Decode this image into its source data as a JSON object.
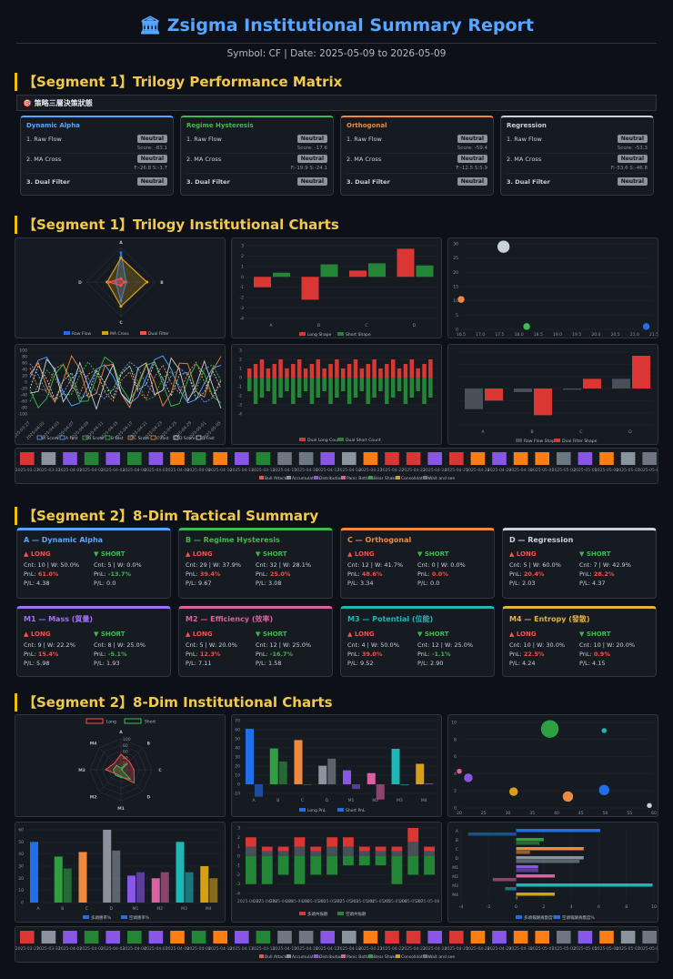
{
  "header": {
    "title": "🏛 Zsigma Institutional Summary Report",
    "subtitle": "Symbol: CF | Date: 2025-05-09 to 2026-05-09"
  },
  "segments": {
    "s1_matrix": "【Segment 1】Trilogy Performance Matrix",
    "s1_charts": "【Segment 1】Trilogy Institutional Charts",
    "s2_summary": "【Segment 2】8-Dim Tactical Summary",
    "s2_charts": "【Segment 2】8-Dim Institutional Charts"
  },
  "matrix_strip_title": "🎯 策略三層決策狀態",
  "matrix": [
    {
      "name": "Dynamic Alpha",
      "color": "#58a6ff",
      "r1": "1. Raw Flow",
      "b1": "Neutral",
      "s1": "",
      "r2": "2. MA Cross",
      "b2": "Neutral",
      "s2": "F:-26.8 S:-3.7",
      "r3": "3. Dual Filter",
      "b3": "Neutral"
    },
    {
      "name": "Regime Hysteresis",
      "color": "#3fb950",
      "r1": "1. Raw Flow",
      "b1": "Neutral",
      "s1": "Score: -17.6",
      "r2": "2. MA Cross",
      "b2": "Neutral",
      "s2": "F:-19.9 S:-24.1",
      "r3": "3. Dual Filter",
      "b3": "Neutral"
    },
    {
      "name": "Orthogonal",
      "color": "#f0883e",
      "r1": "1. Raw Flow",
      "b1": "Neutral",
      "s1": "Score: -59.4",
      "r2": "2. MA Cross",
      "b2": "Neutral",
      "s2": "F:-12.5 S:5.9",
      "r3": "3. Dual Filter",
      "b3": "Neutral"
    },
    {
      "name": "Regression",
      "color": "#c9d1d9",
      "r1": "1. Raw Flow",
      "b1": "Neutral",
      "s1": "Score: -53.3",
      "r2": "2. MA Cross",
      "b2": "Neutral",
      "s2": "F:-53.6 S:-46.8",
      "r3": "3. Dual Filter",
      "b3": "Neutral"
    }
  ],
  "matrix_score_a": "Score: -83.1",
  "s1_radar": {
    "axes": [
      "A",
      "B",
      "C",
      "D"
    ],
    "legend": [
      "Raw Flow",
      "MA Cross",
      "Dual Filter"
    ],
    "colors": [
      "#1f6feb",
      "#d4a017",
      "#f85149"
    ]
  },
  "s1_bar_shape": {
    "categories": [
      "A",
      "B",
      "C",
      "D"
    ],
    "yticks": [
      "3",
      "2",
      "1",
      "0",
      "-1",
      "-2",
      "-3",
      "-4"
    ],
    "long": [
      -1.0,
      -2.2,
      0.6,
      2.7
    ],
    "short": [
      0.4,
      1.2,
      1.3,
      1.1
    ],
    "legend": [
      "Long Shape",
      "Short Shape"
    ]
  },
  "s1_scatter": {
    "yticks": [
      "30",
      "25",
      "20",
      "15",
      "10",
      "5",
      "0"
    ],
    "xticks": [
      "16.5",
      "17.0",
      "17.5",
      "18.0",
      "18.5",
      "19.0",
      "19.5",
      "20.0",
      "20.5",
      "21.0",
      "21.5"
    ],
    "points": [
      {
        "x": 16.5,
        "y": 10.5,
        "r": 4,
        "color": "#f0883e"
      },
      {
        "x": 17.6,
        "y": 29,
        "r": 7,
        "color": "#c9d1d9"
      },
      {
        "x": 18.2,
        "y": 1,
        "r": 4,
        "color": "#3fb950"
      },
      {
        "x": 21.3,
        "y": 1,
        "r": 4,
        "color": "#1f6feb"
      }
    ]
  },
  "s1_lines": {
    "yticks": [
      "100",
      "80",
      "60",
      "40",
      "20",
      "0",
      "-20",
      "-40",
      "-60",
      "-80",
      "-100"
    ],
    "legend": [
      "A Score",
      "A Fast",
      "B Score",
      "B Fast",
      "C Score",
      "C Fast",
      "D Score",
      "D Fast"
    ]
  },
  "s1_counts": {
    "yticks": [
      "3",
      "2",
      "1",
      "0",
      "-1",
      "-2",
      "-3",
      "-4"
    ],
    "legend": [
      "Dual Long Count",
      "Dual Short Count"
    ]
  },
  "s1_shape2": {
    "categories": [
      "A",
      "B",
      "C",
      "D"
    ],
    "raw": [
      -1.7,
      -0.3,
      -0.1,
      0.8
    ],
    "dual": [
      -1.0,
      -2.2,
      0.8,
      2.7
    ],
    "legend": [
      "Raw Flow Shape",
      "Dual Filter Shape"
    ]
  },
  "regime_strip": {
    "dates": [
      "2025-03-27",
      "2025-03-31",
      "2025-04-01",
      "2025-04-02",
      "2025-04-03",
      "2025-04-04",
      "2025-04-07",
      "2025-04-08",
      "2025-04-09",
      "2025-04-10",
      "2025-04-11",
      "2025-04-14",
      "2025-04-15",
      "2025-04-16",
      "2025-04-17",
      "2025-04-18",
      "2025-04-21",
      "2025-04-22",
      "2025-04-23",
      "2025-04-24",
      "2025-04-25",
      "2025-04-28",
      "2025-04-29",
      "2025-04-30",
      "2025-05-01",
      "2025-05-02",
      "2025-05-05",
      "2025-05-06",
      "2025-05-07",
      "2025-05-08"
    ],
    "legend": [
      "Bull Attack",
      "Accumulation",
      "Distribution",
      "Panic Bottom",
      "Bear Shake",
      "Consolidation",
      "Wait and see"
    ],
    "legend_colors": [
      "#f85149",
      "#8b949e",
      "#8957e5",
      "#db61a2",
      "#2ea043",
      "#d4a017",
      "#6e7681"
    ]
  },
  "tactical": [
    {
      "name": "A — Dynamic Alpha",
      "color": "#58a6ff",
      "long_h": "▲ LONG",
      "short_h": "▼ SHORT",
      "lc": "Cnt: 10 | W: 50.0%",
      "lp": "61.0%",
      "lf": "P/L: 4.38",
      "sc": "Cnt: 5 | W: 0.0%",
      "sp": "-13.7%",
      "sf": "P/L: 0.0"
    },
    {
      "name": "B — Regime Hysteresis",
      "color": "#3fb950",
      "long_h": "▲ LONG",
      "short_h": "▼ SHORT",
      "lc": "Cnt: 29 | W: 37.9%",
      "lp": "39.4%",
      "lf": "P/L: 9.67",
      "sc": "Cnt: 32 | W: 28.1%",
      "sp": "25.0%",
      "sf": "P/L: 3.08"
    },
    {
      "name": "C — Orthogonal",
      "color": "#f0883e",
      "long_h": "▲ LONG",
      "short_h": "▼ SHORT",
      "lc": "Cnt: 12 | W: 41.7%",
      "lp": "48.6%",
      "lf": "P/L: 3.34",
      "sc": "Cnt: 0 | W: 0.0%",
      "sp": "0.0%",
      "sf": "P/L: 0.0"
    },
    {
      "name": "D — Regression",
      "color": "#c9d1d9",
      "long_h": "▲ LONG",
      "short_h": "▼ SHORT",
      "lc": "Cnt: 5 | W: 60.0%",
      "lp": "20.4%",
      "lf": "P/L: 2.03",
      "sc": "Cnt: 7 | W: 42.9%",
      "sp": "28.2%",
      "sf": "P/L: 4.37"
    },
    {
      "name": "M1 — Mass (質量)",
      "color": "#a371f7",
      "long_h": "▲ LONG",
      "short_h": "▼ SHORT",
      "lc": "Cnt: 9 | W: 22.2%",
      "lp": "15.4%",
      "lf": "P/L: 5.98",
      "sc": "Cnt: 8 | W: 25.0%",
      "sp": "-5.1%",
      "sf": "P/L: 1.93"
    },
    {
      "name": "M2 — Efficiency (效率)",
      "color": "#db61a2",
      "long_h": "▲ LONG",
      "short_h": "▼ SHORT",
      "lc": "Cnt: 5 | W: 20.0%",
      "lp": "12.3%",
      "lf": "P/L: 7.11",
      "sc": "Cnt: 12 | W: 25.0%",
      "sp": "-16.7%",
      "sf": "P/L: 1.58"
    },
    {
      "name": "M3 — Potential (位能)",
      "color": "#1fb6b6",
      "long_h": "▲ LONG",
      "short_h": "▼ SHORT",
      "lc": "Cnt: 4 | W: 50.0%",
      "lp": "39.0%",
      "lf": "P/L: 9.52",
      "sc": "Cnt: 12 | W: 25.0%",
      "sp": "-1.1%",
      "sf": "P/L: 2.90"
    },
    {
      "name": "M4 — Entropy (發散)",
      "color": "#e3b341",
      "long_h": "▲ LONG",
      "short_h": "▼ SHORT",
      "lc": "Cnt: 10 | W: 30.0%",
      "lp": "22.5%",
      "lf": "P/L: 4.24",
      "sc": "Cnt: 10 | W: 20.0%",
      "sp": "0.9%",
      "sf": "P/L: 4.15"
    }
  ],
  "pnl_label": "PnL: ",
  "s2_radar": {
    "legend": [
      "Long",
      "Short"
    ],
    "axes": [
      "A",
      "B",
      "C",
      "D",
      "M1",
      "M2",
      "M3",
      "M4"
    ],
    "rings": [
      "100",
      "80",
      "60",
      "40",
      "20"
    ]
  },
  "s2_pnl_bars": {
    "categories": [
      "A",
      "B",
      "C",
      "D",
      "M1",
      "M2",
      "M3",
      "M4"
    ],
    "yticks": [
      "70",
      "60",
      "50",
      "40",
      "30",
      "20",
      "10",
      "0",
      "-10"
    ],
    "long": [
      61.0,
      39.4,
      48.6,
      20.4,
      15.4,
      12.3,
      39.0,
      22.5
    ],
    "short": [
      -13.7,
      25.0,
      0.0,
      28.2,
      -5.1,
      -16.7,
      -1.1,
      0.9
    ],
    "colors": [
      "#1f6feb",
      "#2ea043",
      "#f0883e",
      "#8b949e",
      "#8957e5",
      "#db61a2",
      "#1fb6b6",
      "#d4a017"
    ],
    "legend": [
      "Long PnL",
      "Short PnL"
    ]
  },
  "s2_scatter": {
    "yticks": [
      "10",
      "8",
      "6",
      "4",
      "2",
      "0"
    ],
    "xticks": [
      "20",
      "25",
      "30",
      "35",
      "40",
      "45",
      "50",
      "55",
      "60"
    ],
    "points": [
      {
        "x": 18,
        "y": 4.5,
        "r": 3,
        "color": "#db61a2"
      },
      {
        "x": 20,
        "y": 3.7,
        "r": 5,
        "color": "#8957e5"
      },
      {
        "x": 30,
        "y": 2.0,
        "r": 5,
        "color": "#d4a017"
      },
      {
        "x": 38,
        "y": 9.7,
        "r": 10,
        "color": "#2ea043"
      },
      {
        "x": 42,
        "y": 1.4,
        "r": 6,
        "color": "#f0883e"
      },
      {
        "x": 50,
        "y": 9.5,
        "r": 3,
        "color": "#1fb6b6"
      },
      {
        "x": 50,
        "y": 2.2,
        "r": 6,
        "color": "#1f6feb"
      },
      {
        "x": 60,
        "y": 0.3,
        "r": 3,
        "color": "#c9d1d9"
      }
    ]
  },
  "s2_winrate": {
    "categories": [
      "A",
      "B",
      "C",
      "D",
      "M1",
      "M2",
      "M3",
      "M4"
    ],
    "yticks": [
      "60",
      "50",
      "40",
      "30",
      "20",
      "10",
      "0"
    ],
    "long": [
      50,
      37.9,
      41.7,
      60,
      22.2,
      20,
      50,
      30
    ],
    "short": [
      0,
      28.1,
      0,
      42.9,
      25,
      25,
      25,
      20
    ],
    "legend": [
      "多頭勝率%",
      "空頭勝率%"
    ]
  },
  "s2_stacked": {
    "yticks": [
      "3",
      "2",
      "1",
      "0",
      "-1",
      "-2",
      "-3",
      "-4"
    ],
    "dates": [
      "2025-04-27",
      "2025-04-28",
      "2025-04-29",
      "2025-04-30",
      "2025-05-01",
      "2025-05-02",
      "2025-05-03",
      "2025-05-04",
      "2025-05-05",
      "2025-05-06",
      "2025-05-07",
      "2025-05-08"
    ],
    "legend": [
      "多頭共振數",
      "空頭共振數"
    ]
  },
  "s2_hbar": {
    "categories": [
      "A",
      "B",
      "C",
      "D",
      "M1",
      "M2",
      "M3",
      "M4"
    ],
    "xticks": [
      "-4",
      "-2",
      "0",
      "2",
      "4",
      "6",
      "8",
      "10"
    ],
    "a": [
      6.1,
      2.0,
      4.9,
      4.9,
      1.6,
      2.8,
      9.9,
      2.8
    ],
    "b": [
      -3.5,
      1.7,
      1.0,
      4.6,
      1.6,
      -1.7,
      -0.8,
      0.1
    ],
    "legend": [
      "多頭報酬貢獻度%",
      "空頭報酬貢獻度%"
    ]
  }
}
